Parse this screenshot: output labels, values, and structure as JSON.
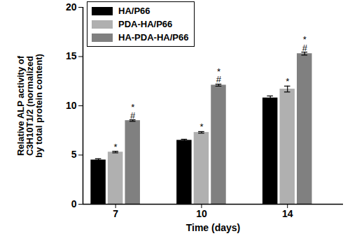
{
  "chart_data": {
    "type": "bar",
    "categories": [
      "7",
      "10",
      "14"
    ],
    "xlabel": "Time (days)",
    "ylabel": "Relative ALP activity of\nC3H10T1/2 (normalized\nby total protein content)",
    "ylim": [
      0,
      20
    ],
    "yticks": [
      0,
      5,
      10,
      15,
      20
    ],
    "legend": "upper left",
    "series": [
      {
        "name": "HA/P66",
        "color": "#000000",
        "values": [
          4.5,
          6.5,
          10.8
        ],
        "errors": [
          0.12,
          0.1,
          0.2
        ]
      },
      {
        "name": "PDA-HA/P66",
        "color": "#b0b0b0",
        "values": [
          5.3,
          7.3,
          11.7
        ],
        "errors": [
          0.08,
          0.08,
          0.3
        ],
        "annotations": [
          [
            "*"
          ],
          [
            "*"
          ],
          [
            "*"
          ]
        ]
      },
      {
        "name": "HA-PDA-HA/P66",
        "color": "#808080",
        "values": [
          8.5,
          12.1,
          15.3
        ],
        "errors": [
          0.08,
          0.1,
          0.15
        ],
        "annotations": [
          [
            "*",
            "#"
          ],
          [
            "*",
            "#"
          ],
          [
            "*",
            "#"
          ]
        ]
      }
    ]
  }
}
